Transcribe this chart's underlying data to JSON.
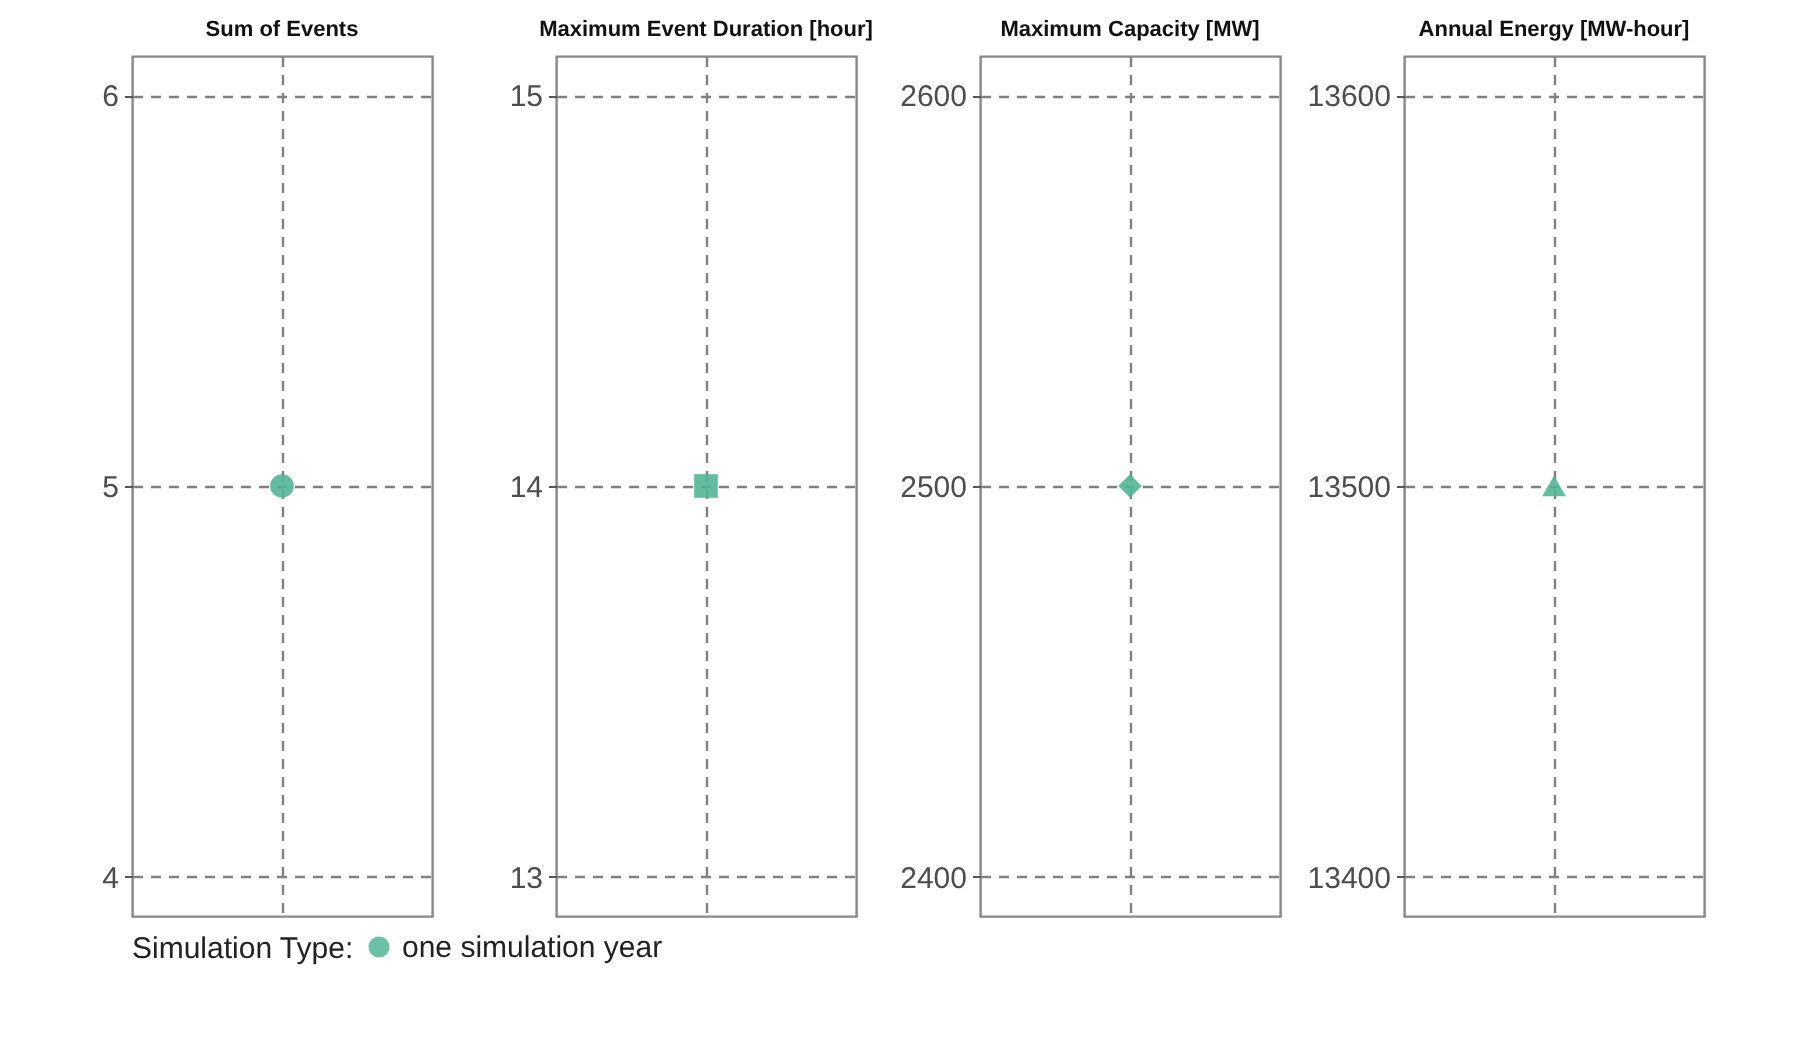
{
  "chart_data": [
    {
      "type": "scatter",
      "title": "Sum of Events",
      "categories": [
        null
      ],
      "legend_title": "Simulation Type:",
      "legend": "bottom",
      "marker": "circle",
      "grid": true,
      "tick_labels": "y",
      "ylim": [
        3.9,
        6.1
      ],
      "yticks": [
        4,
        5,
        6
      ],
      "series": [
        {
          "name": "one simulation year",
          "color": "#52b595",
          "values": [
            5
          ]
        }
      ]
    },
    {
      "type": "scatter",
      "title": "Maximum Event Duration [hour]",
      "categories": [
        null
      ],
      "marker": "square",
      "grid": true,
      "tick_labels": "y",
      "ylim": [
        12.9,
        15.1
      ],
      "yticks": [
        13,
        14,
        15
      ],
      "series": [
        {
          "color": "#52b595",
          "values": [
            14
          ]
        }
      ]
    },
    {
      "type": "scatter",
      "title": "Maximum Capacity [MW]",
      "categories": [
        null
      ],
      "marker": "diamond",
      "grid": true,
      "tick_labels": "y",
      "ylim": [
        2390,
        2610
      ],
      "yticks": [
        2400,
        2500,
        2600
      ],
      "series": [
        {
          "color": "#52b595",
          "values": [
            2500
          ]
        }
      ]
    },
    {
      "type": "scatter",
      "title": "Annual Energy [MW-hour]",
      "categories": [
        null
      ],
      "marker": "triangle",
      "grid": true,
      "tick_labels": "y",
      "ylim": [
        13390,
        13610
      ],
      "yticks": [
        13400,
        13500,
        13600
      ],
      "series": [
        {
          "color": "#52b595",
          "values": [
            13500
          ]
        }
      ]
    }
  ]
}
